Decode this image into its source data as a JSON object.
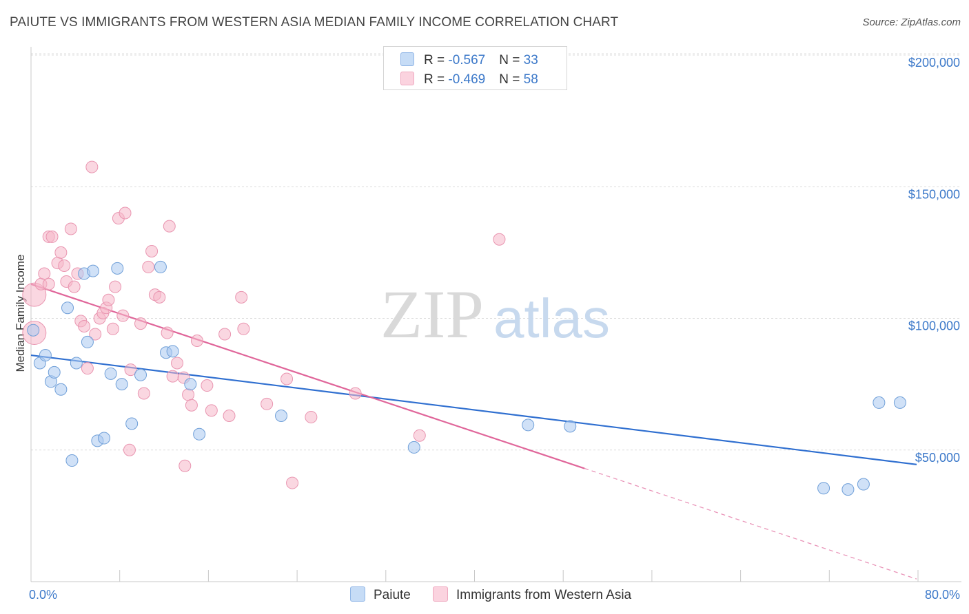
{
  "header": {
    "title": "PAIUTE VS IMMIGRANTS FROM WESTERN ASIA MEDIAN FAMILY INCOME CORRELATION CHART",
    "source": "Source: ZipAtlas.com"
  },
  "watermark": {
    "zip": "ZIP",
    "atlas": "atlas"
  },
  "legend": {
    "rows": [
      {
        "r_label": "R = ",
        "r_value": "-0.567",
        "n_label": "N = ",
        "n_value": "33",
        "color": "#a9c8f0"
      },
      {
        "r_label": "R = ",
        "r_value": "-0.469",
        "n_label": "N = ",
        "n_value": "58",
        "color": "#f6b7c9"
      }
    ]
  },
  "chart_data": {
    "type": "scatter",
    "ylabel": "Median Family Income",
    "xlabel": "",
    "xlim": [
      0,
      80
    ],
    "ylim": [
      0,
      210000
    ],
    "x_tick_labels": [
      "0.0%",
      "80.0%"
    ],
    "y_tick_labels": [
      "$200,000",
      "$150,000",
      "$100,000",
      "$50,000"
    ],
    "y_ticks": [
      200000,
      150000,
      100000,
      50000
    ],
    "grid": true,
    "series": [
      {
        "name": "Paiute",
        "color": "#a9c8f0",
        "stroke": "#6f9fd8",
        "line_color": "#2f6fd0",
        "trend": {
          "x0": 0,
          "y0": 86000,
          "x1": 80,
          "y1": 44500
        },
        "points": [
          [
            0.2,
            95500
          ],
          [
            0.8,
            83000
          ],
          [
            1.3,
            86000
          ],
          [
            1.8,
            76000
          ],
          [
            2.1,
            79500
          ],
          [
            2.7,
            73000
          ],
          [
            3.3,
            104000
          ],
          [
            3.7,
            46000
          ],
          [
            4.1,
            83000
          ],
          [
            4.8,
            117000
          ],
          [
            5.1,
            91000
          ],
          [
            5.6,
            118000
          ],
          [
            6.0,
            53500
          ],
          [
            6.6,
            54500
          ],
          [
            7.2,
            79000
          ],
          [
            7.8,
            119000
          ],
          [
            8.2,
            75000
          ],
          [
            9.1,
            60000
          ],
          [
            9.9,
            78500
          ],
          [
            11.7,
            119500
          ],
          [
            12.2,
            87000
          ],
          [
            12.8,
            87500
          ],
          [
            14.4,
            75000
          ],
          [
            15.2,
            56000
          ],
          [
            22.6,
            63000
          ],
          [
            34.6,
            51000
          ],
          [
            44.9,
            59500
          ],
          [
            48.7,
            59000
          ],
          [
            71.6,
            35500
          ],
          [
            73.8,
            35000
          ],
          [
            75.2,
            37000
          ],
          [
            76.6,
            68000
          ],
          [
            78.5,
            68000
          ]
        ]
      },
      {
        "name": "Immigrants from Western Asia",
        "color": "#f6b7c9",
        "stroke": "#e995b0",
        "line_color": "#e0669a",
        "trend": {
          "x0": 0,
          "y0": 113000,
          "x1": 50,
          "y1": 43000
        },
        "trend_dashed": {
          "x0": 50,
          "y0": 43000,
          "x1": 80,
          "y1": 1000
        },
        "points": [
          [
            0.3,
            109000,
            "big"
          ],
          [
            0.3,
            94500,
            "big"
          ],
          [
            0.9,
            113000
          ],
          [
            1.2,
            117000
          ],
          [
            1.6,
            113000
          ],
          [
            1.6,
            131000
          ],
          [
            1.9,
            131000
          ],
          [
            2.4,
            121000
          ],
          [
            2.7,
            125000
          ],
          [
            3.0,
            120000
          ],
          [
            3.2,
            114000
          ],
          [
            3.6,
            134000
          ],
          [
            3.9,
            112000
          ],
          [
            4.2,
            117000
          ],
          [
            4.5,
            99000
          ],
          [
            4.8,
            97000
          ],
          [
            5.1,
            81000
          ],
          [
            5.5,
            157500
          ],
          [
            5.8,
            94000
          ],
          [
            6.2,
            100000
          ],
          [
            6.5,
            102000
          ],
          [
            6.8,
            104000
          ],
          [
            7.0,
            107000
          ],
          [
            7.4,
            96000
          ],
          [
            7.6,
            112000
          ],
          [
            7.9,
            138000
          ],
          [
            8.3,
            101000
          ],
          [
            8.5,
            140000
          ],
          [
            8.9,
            50000
          ],
          [
            9.0,
            80500
          ],
          [
            9.9,
            98000
          ],
          [
            10.2,
            71500
          ],
          [
            10.6,
            119500
          ],
          [
            10.9,
            125500
          ],
          [
            11.2,
            109000
          ],
          [
            11.6,
            108000
          ],
          [
            12.3,
            94500
          ],
          [
            12.5,
            135000
          ],
          [
            12.8,
            78000
          ],
          [
            13.2,
            83000
          ],
          [
            13.8,
            77500
          ],
          [
            13.9,
            44000
          ],
          [
            14.2,
            71000
          ],
          [
            14.5,
            67000
          ],
          [
            15.0,
            91500
          ],
          [
            15.9,
            74500
          ],
          [
            16.3,
            65000
          ],
          [
            17.5,
            94000
          ],
          [
            17.9,
            63000
          ],
          [
            19.0,
            108000
          ],
          [
            19.2,
            96000
          ],
          [
            21.3,
            67500
          ],
          [
            23.1,
            77000
          ],
          [
            23.6,
            37500
          ],
          [
            25.3,
            62500
          ],
          [
            29.3,
            71500
          ],
          [
            35.1,
            55500
          ],
          [
            42.3,
            130000
          ]
        ]
      }
    ]
  },
  "bottom_legend": {
    "items": [
      {
        "label": "Paiute",
        "color": "#a9c8f0"
      },
      {
        "label": "Immigrants from Western Asia",
        "color": "#f6b7c9"
      }
    ]
  }
}
